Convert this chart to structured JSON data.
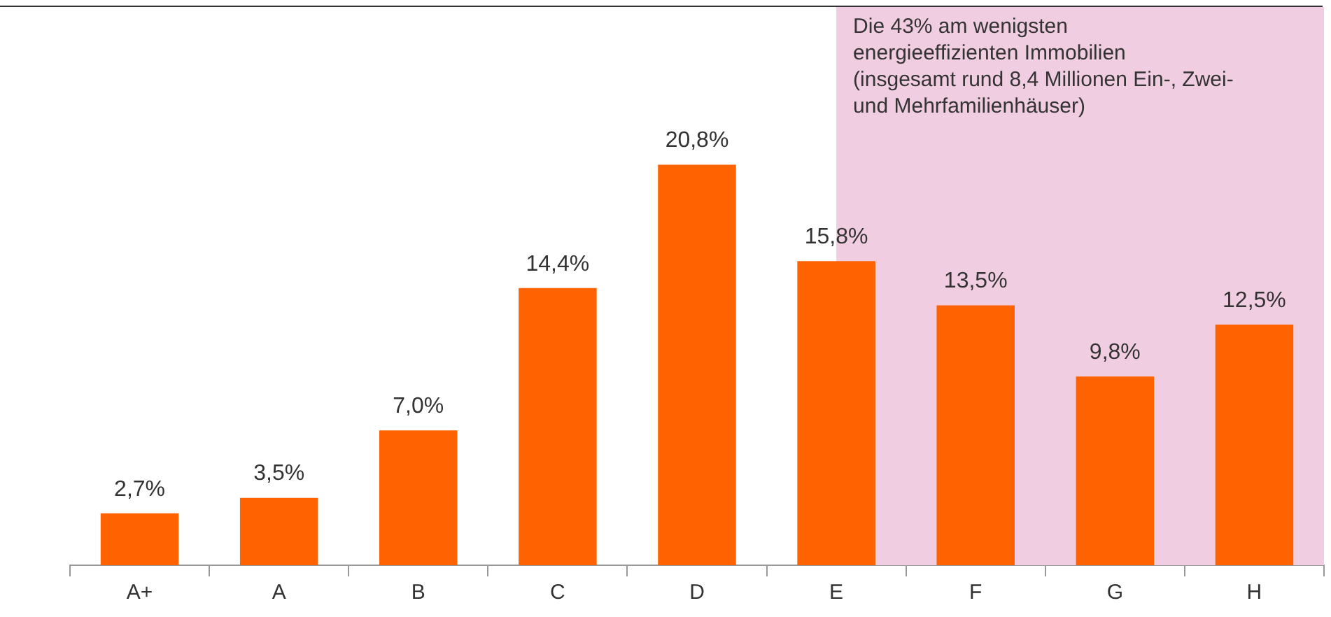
{
  "chart_data": {
    "type": "bar",
    "categories": [
      "A+",
      "A",
      "B",
      "C",
      "D",
      "E",
      "F",
      "G",
      "H"
    ],
    "values": [
      2.7,
      3.5,
      7.0,
      14.4,
      20.8,
      15.8,
      13.5,
      9.8,
      12.5
    ],
    "value_labels": [
      "2,7%",
      "3,5%",
      "7,0%",
      "14,4%",
      "20,8%",
      "15,8%",
      "13,5%",
      "9,8%",
      "12,5%"
    ],
    "color": "#ff6200",
    "bands": [
      {
        "axis": "x",
        "from": "E",
        "to": "H",
        "label": "Die 43% am wenigsten energieeffizienten Immobilien (insgesamt rund 8,4 Millionen Ein-, Zwei- und Mehrfamilienhäuser)",
        "color": "#f0cde0"
      }
    ],
    "grid": false,
    "legend": false
  }
}
